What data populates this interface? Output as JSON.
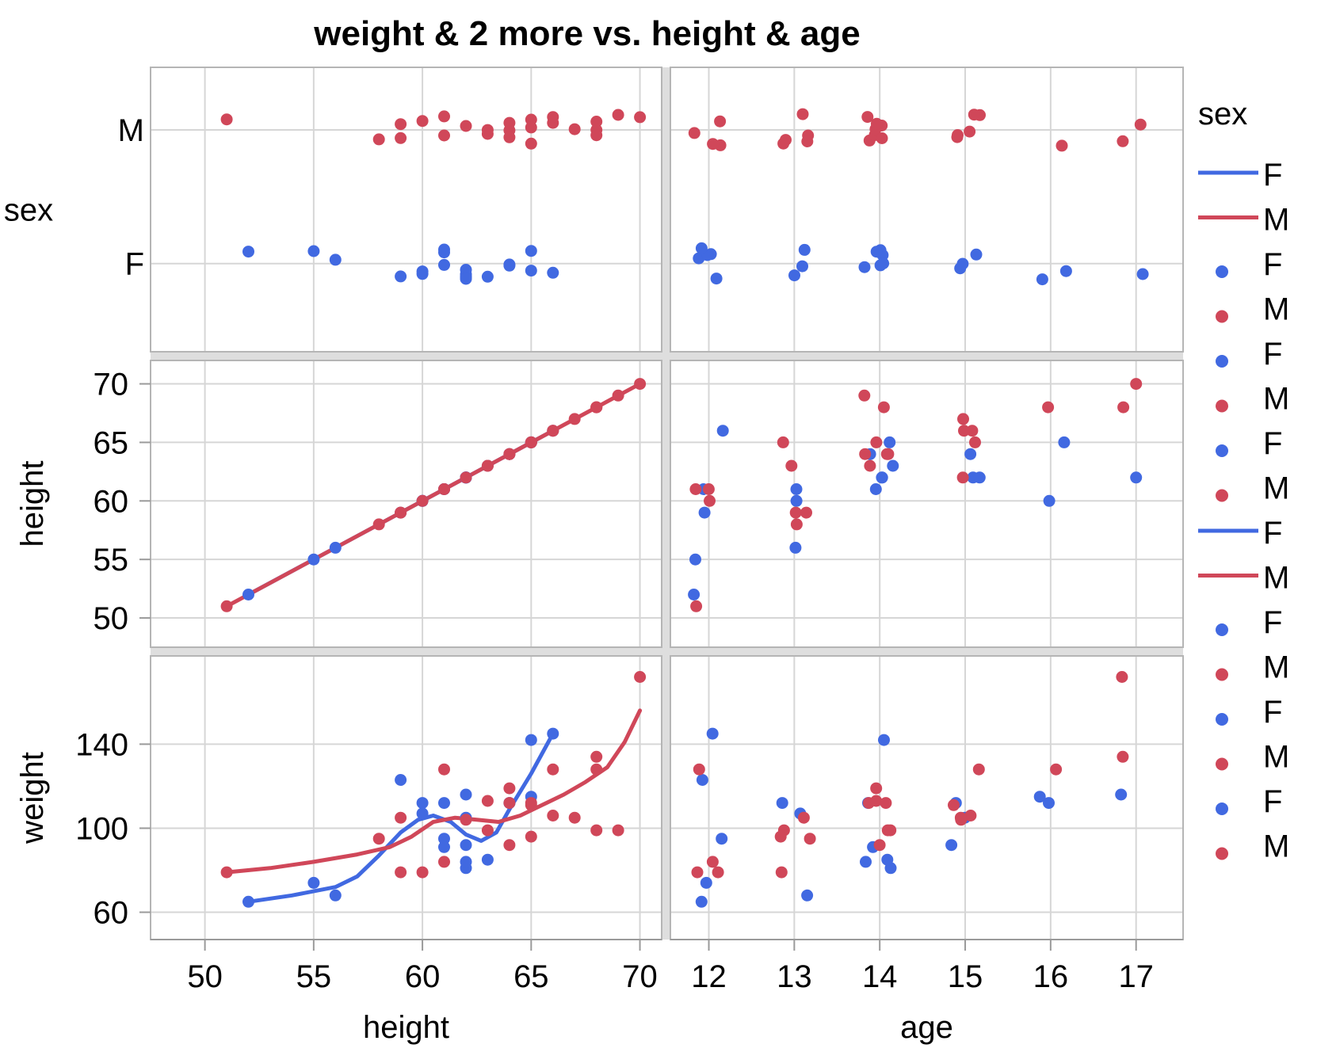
{
  "chart_data": {
    "type": "scatter",
    "title": "weight & 2 more vs. height & age",
    "x_columns": [
      {
        "name": "height",
        "range": [
          47.5,
          71
        ],
        "ticks": [
          50,
          55,
          60,
          65,
          70
        ]
      },
      {
        "name": "age",
        "range": [
          11.55,
          17.55
        ],
        "ticks": [
          12,
          13,
          14,
          15,
          16,
          17
        ]
      }
    ],
    "y_rows": [
      {
        "name": "sex",
        "type": "categorical",
        "categories": [
          "F",
          "M"
        ]
      },
      {
        "name": "height",
        "range": [
          47.5,
          72
        ],
        "ticks": [
          50,
          55,
          60,
          65,
          70
        ]
      },
      {
        "name": "weight",
        "range": [
          47,
          182
        ],
        "ticks": [
          60,
          100,
          140
        ]
      }
    ],
    "grid": true,
    "legend": {
      "title": "sex",
      "position": "right",
      "entries": [
        {
          "label": "F",
          "kind": "line",
          "color": "#4169e1"
        },
        {
          "label": "M",
          "kind": "line",
          "color": "#d04759"
        },
        {
          "label": "F",
          "kind": "point",
          "color": "#4169e1"
        },
        {
          "label": "M",
          "kind": "point",
          "color": "#d04759"
        },
        {
          "label": "F",
          "kind": "point",
          "color": "#4169e1"
        },
        {
          "label": "M",
          "kind": "point",
          "color": "#d04759"
        },
        {
          "label": "F",
          "kind": "point",
          "color": "#4169e1"
        },
        {
          "label": "M",
          "kind": "point",
          "color": "#d04759"
        },
        {
          "label": "F",
          "kind": "line",
          "color": "#4169e1"
        },
        {
          "label": "M",
          "kind": "line",
          "color": "#d04759"
        },
        {
          "label": "F",
          "kind": "point",
          "color": "#4169e1"
        },
        {
          "label": "M",
          "kind": "point",
          "color": "#d04759"
        },
        {
          "label": "F",
          "kind": "point",
          "color": "#4169e1"
        },
        {
          "label": "M",
          "kind": "point",
          "color": "#d04759"
        },
        {
          "label": "F",
          "kind": "point",
          "color": "#4169e1"
        },
        {
          "label": "M",
          "kind": "point",
          "color": "#d04759"
        }
      ]
    },
    "colors": {
      "F": "#4169e1",
      "M": "#d04759"
    },
    "records": [
      {
        "sex": "F",
        "age": 12,
        "height": 52,
        "weight": 65
      },
      {
        "sex": "F",
        "age": 12,
        "height": 55,
        "weight": 74
      },
      {
        "sex": "F",
        "age": 12,
        "height": 59,
        "weight": 123
      },
      {
        "sex": "F",
        "age": 12,
        "height": 61,
        "weight": 95
      },
      {
        "sex": "F",
        "age": 12,
        "height": 66,
        "weight": 145
      },
      {
        "sex": "F",
        "age": 13,
        "height": 56,
        "weight": 68
      },
      {
        "sex": "F",
        "age": 13,
        "height": 60,
        "weight": 107
      },
      {
        "sex": "F",
        "age": 13,
        "height": 61,
        "weight": 112
      },
      {
        "sex": "F",
        "age": 14,
        "height": 62,
        "weight": 81
      },
      {
        "sex": "F",
        "age": 14,
        "height": 62,
        "weight": 84
      },
      {
        "sex": "F",
        "age": 14,
        "height": 61,
        "weight": 91
      },
      {
        "sex": "F",
        "age": 14,
        "height": 63,
        "weight": 85
      },
      {
        "sex": "F",
        "age": 14,
        "height": 65,
        "weight": 142
      },
      {
        "sex": "F",
        "age": 14,
        "height": 64,
        "weight": 112
      },
      {
        "sex": "F",
        "age": 15,
        "height": 62,
        "weight": 92
      },
      {
        "sex": "F",
        "age": 15,
        "height": 64,
        "weight": 112
      },
      {
        "sex": "F",
        "age": 15,
        "height": 62,
        "weight": 105
      },
      {
        "sex": "F",
        "age": 16,
        "height": 60,
        "weight": 112
      },
      {
        "sex": "F",
        "age": 16,
        "height": 65,
        "weight": 115
      },
      {
        "sex": "F",
        "age": 17,
        "height": 62,
        "weight": 116
      },
      {
        "sex": "M",
        "age": 12,
        "height": 60,
        "weight": 79
      },
      {
        "sex": "M",
        "age": 12,
        "height": 61,
        "weight": 84
      },
      {
        "sex": "M",
        "age": 12,
        "height": 51,
        "weight": 79
      },
      {
        "sex": "M",
        "age": 12,
        "height": 61,
        "weight": 128
      },
      {
        "sex": "M",
        "age": 13,
        "height": 63,
        "weight": 99
      },
      {
        "sex": "M",
        "age": 13,
        "height": 59,
        "weight": 79
      },
      {
        "sex": "M",
        "age": 13,
        "height": 58,
        "weight": 95
      },
      {
        "sex": "M",
        "age": 13,
        "height": 65,
        "weight": 96
      },
      {
        "sex": "M",
        "age": 13,
        "height": 59,
        "weight": 105
      },
      {
        "sex": "M",
        "age": 14,
        "height": 64,
        "weight": 119
      },
      {
        "sex": "M",
        "age": 14,
        "height": 69,
        "weight": 99
      },
      {
        "sex": "M",
        "age": 14,
        "height": 68,
        "weight": 99
      },
      {
        "sex": "M",
        "age": 14,
        "height": 64,
        "weight": 92
      },
      {
        "sex": "M",
        "age": 14,
        "height": 65,
        "weight": 112
      },
      {
        "sex": "M",
        "age": 14,
        "height": 63,
        "weight": 113
      },
      {
        "sex": "M",
        "age": 14,
        "height": 64,
        "weight": 112
      },
      {
        "sex": "M",
        "age": 15,
        "height": 66,
        "weight": 128
      },
      {
        "sex": "M",
        "age": 15,
        "height": 65,
        "weight": 111
      },
      {
        "sex": "M",
        "age": 15,
        "height": 66,
        "weight": 106
      },
      {
        "sex": "M",
        "age": 15,
        "height": 67,
        "weight": 105
      },
      {
        "sex": "M",
        "age": 15,
        "height": 62,
        "weight": 104
      },
      {
        "sex": "M",
        "age": 16,
        "height": 68,
        "weight": 128
      },
      {
        "sex": "M",
        "age": 17,
        "height": 68,
        "weight": 134
      },
      {
        "sex": "M",
        "age": 17,
        "height": 70,
        "weight": 172
      }
    ],
    "smoothers": {
      "height_vs_height": [
        {
          "series": "F",
          "color": "#4169e1",
          "points": [
            [
              52,
              52
            ],
            [
              66,
              66
            ]
          ]
        },
        {
          "series": "M",
          "color": "#d04759",
          "points": [
            [
              51,
              51
            ],
            [
              70,
              70
            ]
          ]
        }
      ],
      "weight_vs_height": [
        {
          "series": "F",
          "color": "#4169e1",
          "points": [
            [
              52,
              65
            ],
            [
              54,
              68
            ],
            [
              56,
              72
            ],
            [
              57,
              77
            ],
            [
              58,
              87
            ],
            [
              59,
              98
            ],
            [
              59.8,
              104
            ],
            [
              60.5,
              106
            ],
            [
              61.3,
              103
            ],
            [
              62,
              97
            ],
            [
              62.7,
              94
            ],
            [
              63.4,
              98
            ],
            [
              64,
              109
            ],
            [
              65,
              126
            ],
            [
              66,
              145
            ]
          ]
        },
        {
          "series": "M",
          "color": "#d04759",
          "points": [
            [
              51,
              79
            ],
            [
              53,
              81
            ],
            [
              55,
              84
            ],
            [
              57,
              87.5
            ],
            [
              58.5,
              91
            ],
            [
              59.5,
              96
            ],
            [
              60.5,
              103
            ],
            [
              61.5,
              105
            ],
            [
              62.5,
              104
            ],
            [
              63.5,
              103
            ],
            [
              64.5,
              106
            ],
            [
              65.5,
              111
            ],
            [
              66.5,
              116
            ],
            [
              67.5,
              122
            ],
            [
              68.5,
              129
            ],
            [
              69.3,
              141
            ],
            [
              70,
              156
            ]
          ]
        }
      ]
    }
  }
}
